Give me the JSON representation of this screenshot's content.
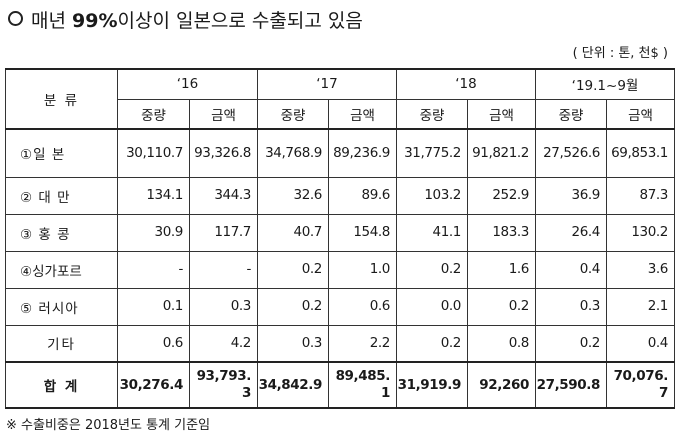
{
  "heading": {
    "prefix": "매년 ",
    "bold": "99%",
    "suffix": "이상이 일본으로 수출되고 있음"
  },
  "unit_note": "( 단위 : 톤, 천$ )",
  "table": {
    "category_header": "분 류",
    "years": [
      "‘16",
      "‘17",
      "‘18",
      "‘19.1~9월"
    ],
    "sub_headers": [
      "중량",
      "금액"
    ],
    "rows": [
      {
        "label": "①일 본",
        "values": [
          "30,110.7",
          "93,326.8",
          "34,768.9",
          "89,236.9",
          "31,775.2",
          "91,821.2",
          "27,526.6",
          "69,853.1"
        ]
      },
      {
        "label": "② 대 만",
        "values": [
          "134.1",
          "344.3",
          "32.6",
          "89.6",
          "103.2",
          "252.9",
          "36.9",
          "87.3"
        ]
      },
      {
        "label": "③ 홍 콩",
        "values": [
          "30.9",
          "117.7",
          "40.7",
          "154.8",
          "41.1",
          "183.3",
          "26.4",
          "130.2"
        ]
      },
      {
        "label": "④싱가포르",
        "values": [
          "-",
          "-",
          "0.2",
          "1.0",
          "0.2",
          "1.6",
          "0.4",
          "3.6"
        ]
      },
      {
        "label": "⑤ 러시아",
        "values": [
          "0.1",
          "0.3",
          "0.2",
          "0.6",
          "0.0",
          "0.2",
          "0.3",
          "2.1"
        ]
      },
      {
        "label": "기타",
        "values": [
          "0.6",
          "4.2",
          "0.3",
          "2.2",
          "0.2",
          "0.8",
          "0.2",
          "0.4"
        ]
      }
    ],
    "total": {
      "label": "합 계",
      "values": [
        "30,276.4",
        "93,793.3",
        "34,842.9",
        "89,485.1",
        "31,919.9",
        "92,260",
        "27,590.8",
        "70,076.7"
      ]
    }
  },
  "footnote": "※ 수출비중은 2018년도 통계 기준임"
}
